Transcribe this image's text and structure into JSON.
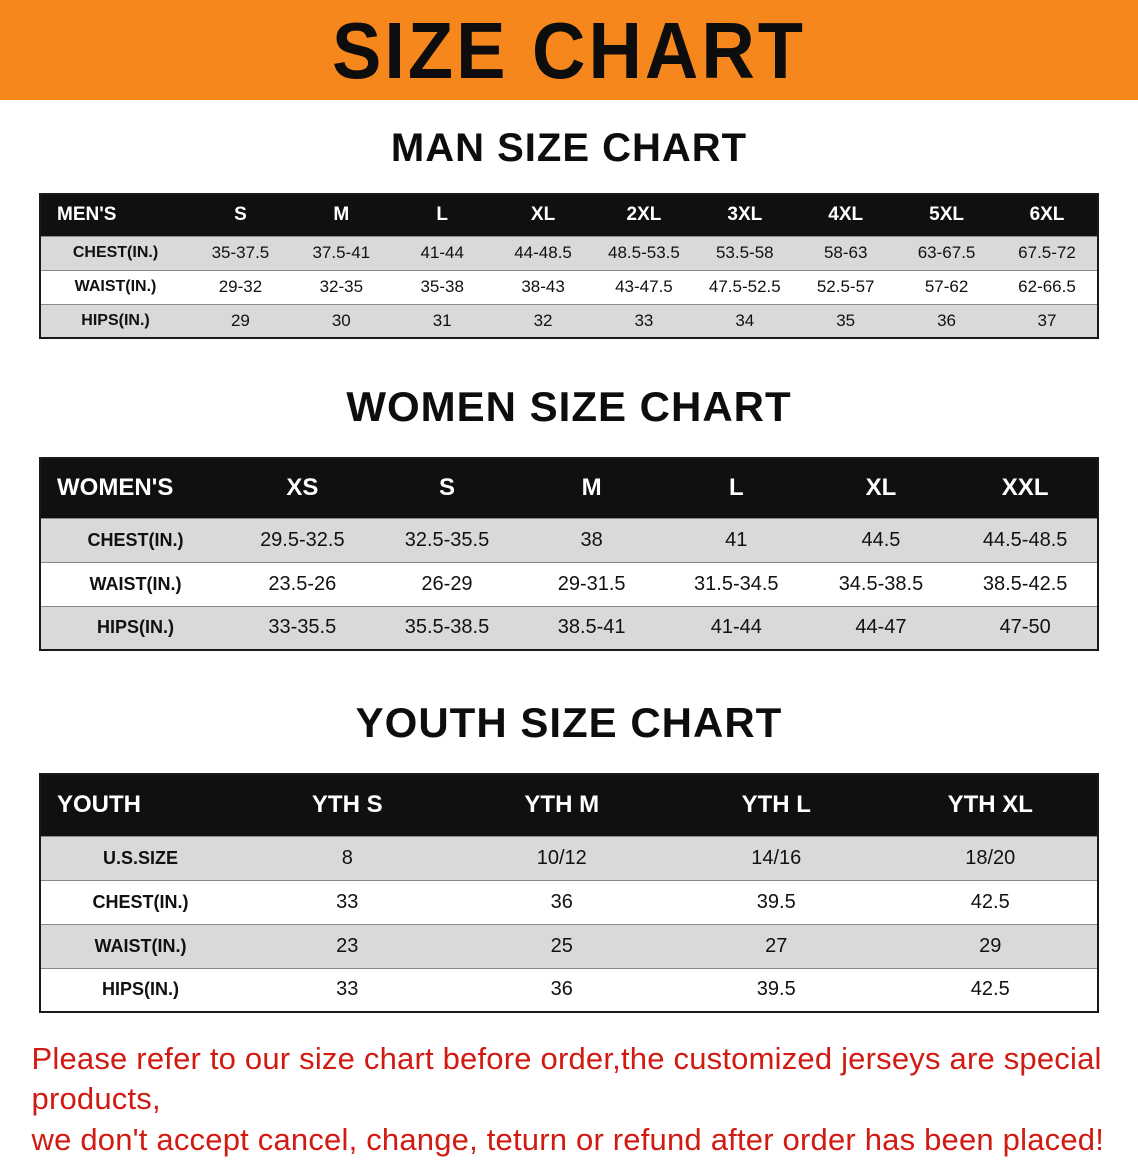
{
  "banner": {
    "title": "SIZE CHART"
  },
  "colors": {
    "banner_bg": "#f6871d",
    "table_header_bg": "#101010",
    "row_gray": "#d9d9d9",
    "notice_red": "#d11a12"
  },
  "men": {
    "heading": "MAN SIZE CHART",
    "label": "MEN'S",
    "sizes": [
      "S",
      "M",
      "L",
      "XL",
      "2XL",
      "3XL",
      "4XL",
      "5XL",
      "6XL"
    ],
    "rows": [
      {
        "label": "CHEST(IN.)",
        "values": [
          "35-37.5",
          "37.5-41",
          "41-44",
          "44-48.5",
          "48.5-53.5",
          "53.5-58",
          "58-63",
          "63-67.5",
          "67.5-72"
        ]
      },
      {
        "label": "WAIST(IN.)",
        "values": [
          "29-32",
          "32-35",
          "35-38",
          "38-43",
          "43-47.5",
          "47.5-52.5",
          "52.5-57",
          "57-62",
          "62-66.5"
        ]
      },
      {
        "label": "HIPS(IN.)",
        "values": [
          "29",
          "30",
          "31",
          "32",
          "33",
          "34",
          "35",
          "36",
          "37"
        ]
      }
    ]
  },
  "women": {
    "heading": "WOMEN SIZE CHART",
    "label": "WOMEN'S",
    "sizes": [
      "XS",
      "S",
      "M",
      "L",
      "XL",
      "XXL"
    ],
    "rows": [
      {
        "label": "CHEST(IN.)",
        "values": [
          "29.5-32.5",
          "32.5-35.5",
          "38",
          "41",
          "44.5",
          "44.5-48.5"
        ]
      },
      {
        "label": "WAIST(IN.)",
        "values": [
          "23.5-26",
          "26-29",
          "29-31.5",
          "31.5-34.5",
          "34.5-38.5",
          "38.5-42.5"
        ]
      },
      {
        "label": "HIPS(IN.)",
        "values": [
          "33-35.5",
          "35.5-38.5",
          "38.5-41",
          "41-44",
          "44-47",
          "47-50"
        ]
      }
    ]
  },
  "youth": {
    "heading": "YOUTH SIZE CHART",
    "label": "YOUTH",
    "sizes": [
      "YTH S",
      "YTH M",
      "YTH L",
      "YTH XL"
    ],
    "rows": [
      {
        "label": "U.S.SIZE",
        "values": [
          "8",
          "10/12",
          "14/16",
          "18/20"
        ]
      },
      {
        "label": "CHEST(IN.)",
        "values": [
          "33",
          "36",
          "39.5",
          "42.5"
        ]
      },
      {
        "label": "WAIST(IN.)",
        "values": [
          "23",
          "25",
          "27",
          "29"
        ]
      },
      {
        "label": "HIPS(IN.)",
        "values": [
          "33",
          "36",
          "39.5",
          "42.5"
        ]
      }
    ]
  },
  "notice": {
    "line1": "Please refer to our size chart before order,the customized jerseys are special products,",
    "line2": "we don't accept cancel, change, teturn or refund after order has been placed!"
  }
}
